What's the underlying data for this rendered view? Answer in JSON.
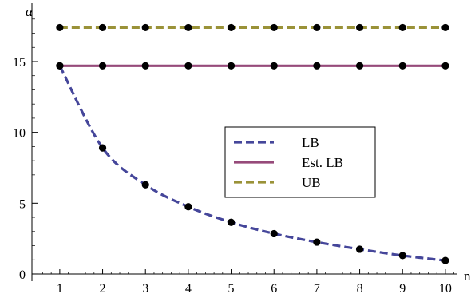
{
  "chart_data": {
    "type": "line",
    "title": "",
    "xlabel": "n",
    "ylabel": "α",
    "xlim": [
      0.35,
      10.3
    ],
    "ylim": [
      -0.3,
      18.8
    ],
    "x_ticks": [
      1,
      2,
      3,
      4,
      5,
      6,
      7,
      8,
      9,
      10
    ],
    "y_ticks": [
      0,
      5,
      10,
      15
    ],
    "grid": false,
    "legend_position": "center-right",
    "series": [
      {
        "name": "LB",
        "color": "#45469a",
        "style": "dashed",
        "x": [
          1,
          2,
          3,
          4,
          5,
          6,
          7,
          8,
          9,
          10
        ],
        "y": [
          14.7,
          8.9,
          6.3,
          4.75,
          3.65,
          2.85,
          2.25,
          1.75,
          1.3,
          0.95
        ]
      },
      {
        "name": "Est. LB",
        "color": "#964a7a",
        "style": "solid",
        "x": [
          1,
          2,
          3,
          4,
          5,
          6,
          7,
          8,
          9,
          10
        ],
        "y": [
          14.7,
          14.7,
          14.7,
          14.7,
          14.7,
          14.7,
          14.7,
          14.7,
          14.7,
          14.7
        ]
      },
      {
        "name": "UB",
        "color": "#9a9238",
        "style": "dashed",
        "x": [
          1,
          2,
          3,
          4,
          5,
          6,
          7,
          8,
          9,
          10
        ],
        "y": [
          17.4,
          17.4,
          17.4,
          17.4,
          17.4,
          17.4,
          17.4,
          17.4,
          17.4,
          17.4
        ]
      }
    ]
  }
}
